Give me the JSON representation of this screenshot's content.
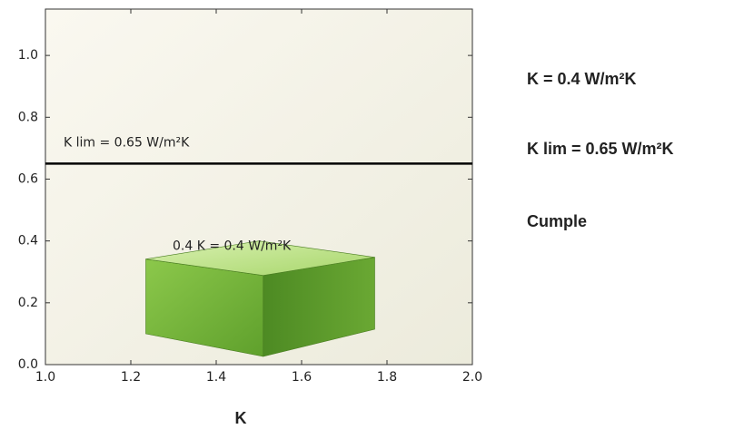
{
  "chart_data": {
    "type": "bar",
    "xlabel": "K",
    "bar": {
      "value": 0.4,
      "x": [
        1.25,
        1.75
      ],
      "label": "0.4 K = 0.4 W/m²K",
      "color": "#6fb23a"
    },
    "hline": {
      "value": 0.65,
      "label": "K lim = 0.65 W/m²K",
      "color": "#000000"
    },
    "xlim": [
      1.0,
      2.0
    ],
    "xticks": [
      {
        "value": 1.0,
        "label": "1.0"
      },
      1.2,
      1.4,
      1.6,
      1.8,
      {
        "value": 2.0,
        "label": "2.0"
      }
    ],
    "ylim": [
      0,
      1.15
    ],
    "yticks": [
      {
        "value": 0,
        "label": "0.0"
      },
      0.2,
      0.4,
      0.6,
      0.8,
      {
        "value": 1.0,
        "label": "1.0"
      }
    ]
  },
  "side_panel": {
    "lines": [
      "K = 0.4 W/m²K",
      "K lim = 0.65 W/m²K",
      "Cumple"
    ]
  }
}
